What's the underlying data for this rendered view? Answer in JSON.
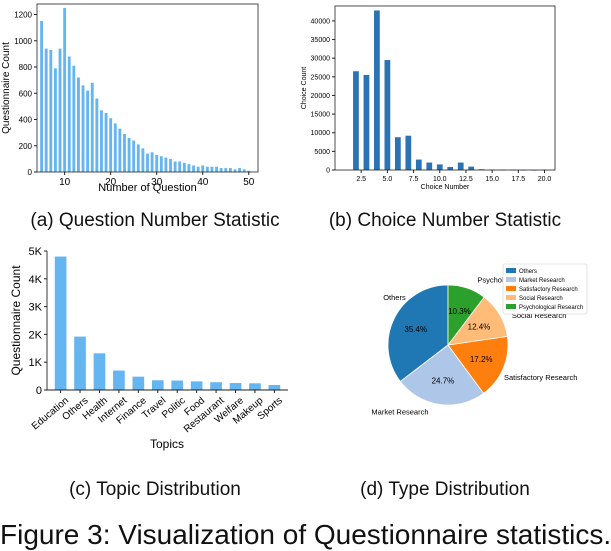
{
  "captions": {
    "a": "(a)  Question Number Statistic",
    "b": "(b)  Choice Number Statistic",
    "c": "(c)  Topic Distribution",
    "d": "(d)  Type Distribution"
  },
  "figure_caption": "Figure 3: Visualization of Questionnaire statistics.",
  "colors": {
    "light_bar": "#64b5f0",
    "dark_bar": "#2a74b5",
    "pie_others": "#1f77b4",
    "pie_market": "#aec7e8",
    "pie_satisfactory": "#ff7f0e",
    "pie_social": "#ffbb78",
    "pie_psych": "#2ca02c"
  },
  "chart_data": [
    {
      "type": "bar",
      "xlabel": "Number of Question",
      "ylabel": "Questionnaire Count",
      "xlim": [
        4,
        52
      ],
      "ylim": [
        0,
        1280
      ],
      "xticks": [
        10,
        20,
        30,
        40,
        50
      ],
      "yticks": [
        0,
        200,
        400,
        600,
        800,
        1000,
        1200
      ],
      "x": [
        5,
        6,
        7,
        8,
        9,
        10,
        11,
        12,
        13,
        14,
        15,
        16,
        17,
        18,
        19,
        20,
        21,
        22,
        23,
        24,
        25,
        26,
        27,
        28,
        29,
        30,
        31,
        32,
        33,
        34,
        35,
        36,
        37,
        38,
        39,
        40,
        41,
        42,
        43,
        44,
        45,
        46,
        47,
        48,
        49,
        50
      ],
      "values": [
        1150,
        940,
        930,
        790,
        940,
        1250,
        880,
        810,
        720,
        660,
        620,
        680,
        560,
        470,
        450,
        410,
        370,
        330,
        290,
        260,
        240,
        210,
        180,
        140,
        150,
        130,
        120,
        110,
        100,
        80,
        80,
        70,
        60,
        50,
        40,
        50,
        40,
        40,
        40,
        30,
        30,
        30,
        20,
        30,
        20,
        10
      ]
    },
    {
      "type": "bar",
      "xlabel": "Choice Number",
      "ylabel": "Choice Count",
      "xlim": [
        0,
        21
      ],
      "ylim": [
        0,
        44000
      ],
      "xticks": [
        "2.5",
        "5.0",
        "7.5",
        "10.0",
        "12.5",
        "15.0",
        "17.5",
        "20.0"
      ],
      "yticks": [
        0,
        5000,
        10000,
        15000,
        20000,
        25000,
        30000,
        35000,
        40000
      ],
      "x": [
        2,
        3,
        4,
        5,
        6,
        7,
        8,
        9,
        10,
        11,
        12,
        13,
        14,
        15,
        16,
        17,
        18,
        19,
        20
      ],
      "values": [
        26500,
        25500,
        42800,
        29500,
        8800,
        9200,
        2800,
        2000,
        1500,
        800,
        2000,
        900,
        200,
        80,
        50,
        30,
        20,
        10,
        50
      ]
    },
    {
      "type": "bar",
      "xlabel": "Topics",
      "ylabel": "Questionnaire Count",
      "ylim": [
        0,
        5000
      ],
      "yticks": [
        "0",
        "1K",
        "2K",
        "3K",
        "4K",
        "5K"
      ],
      "categories": [
        "Education",
        "Others",
        "Health",
        "Internet",
        "Finance",
        "Travel",
        "Politic",
        "Food",
        "Restaurant",
        "Welfare",
        "Makeup",
        "Sports"
      ],
      "values": [
        4800,
        1920,
        1320,
        700,
        480,
        350,
        340,
        310,
        280,
        250,
        240,
        180
      ]
    },
    {
      "type": "pie",
      "legend": [
        "Others",
        "Market Research",
        "Satisfactory Research",
        "Social Research",
        "Psychological Research"
      ],
      "legend_position": "top-right",
      "slices": [
        {
          "name": "Others",
          "percent_label": "35.4%",
          "value": 35.4
        },
        {
          "name": "Market Research",
          "percent_label": "24.7%",
          "value": 24.7
        },
        {
          "name": "Satisfactory Research",
          "percent_label": "17.2%",
          "value": 17.2
        },
        {
          "name": "Social Research",
          "percent_label": "12.4%",
          "value": 12.4
        },
        {
          "name": "Psychological Research",
          "percent_label": "10.3%",
          "value": 10.3
        }
      ]
    }
  ]
}
